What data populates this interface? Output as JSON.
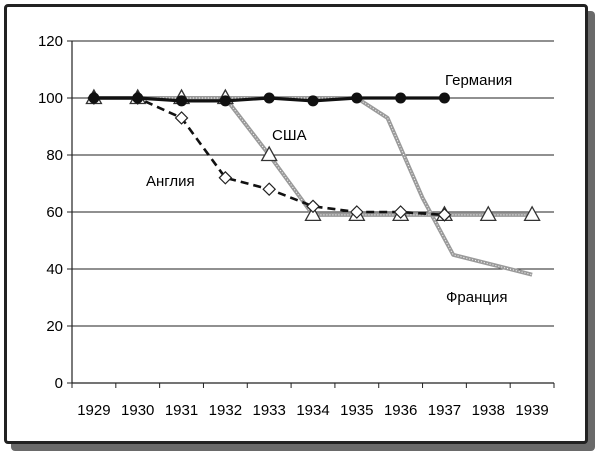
{
  "chart_data": {
    "type": "line",
    "title": "",
    "xlabel": "",
    "ylabel": "",
    "ylim": [
      0,
      120
    ],
    "yticks": [
      "0",
      "20",
      "40",
      "60",
      "80",
      "100",
      "120"
    ],
    "categories": [
      "1929",
      "1930",
      "1931",
      "1932",
      "1933",
      "1934",
      "1935",
      "1936",
      "1937",
      "1938",
      "1939"
    ],
    "grid": "horizontal",
    "series": [
      {
        "name": "Германия",
        "style": "solid-thick",
        "color": "#111111",
        "marker": "circle-filled",
        "points": [
          [
            0,
            100
          ],
          [
            1,
            100
          ],
          [
            2,
            99
          ],
          [
            3,
            99
          ],
          [
            4,
            100
          ],
          [
            5,
            99
          ],
          [
            6,
            100
          ],
          [
            7,
            100
          ],
          [
            8,
            100
          ]
        ]
      },
      {
        "name": "США",
        "style": "gray-hatched",
        "color": "#9a9a9a",
        "marker": "triangle-open",
        "points": [
          [
            0,
            100
          ],
          [
            1,
            100
          ],
          [
            2,
            100
          ],
          [
            3,
            100
          ],
          [
            4,
            80
          ],
          [
            5,
            59
          ],
          [
            6,
            59
          ],
          [
            7,
            59
          ],
          [
            8,
            59
          ],
          [
            9,
            59
          ],
          [
            10,
            59
          ]
        ]
      },
      {
        "name": "Англия",
        "style": "dashed",
        "color": "#111111",
        "marker": "diamond-open",
        "points": [
          [
            0,
            100
          ],
          [
            1,
            100
          ],
          [
            2,
            93
          ],
          [
            3,
            72
          ],
          [
            4,
            68
          ],
          [
            5,
            62
          ],
          [
            6,
            60
          ],
          [
            7,
            60
          ],
          [
            8,
            59
          ]
        ]
      },
      {
        "name": "Франция",
        "style": "gray-hatched",
        "color": "#9a9a9a",
        "marker": "none",
        "points": [
          [
            0,
            100
          ],
          [
            1,
            100
          ],
          [
            2,
            100
          ],
          [
            3,
            100
          ],
          [
            4,
            100
          ],
          [
            5,
            100
          ],
          [
            6,
            100
          ],
          [
            6.7,
            93
          ],
          [
            7.5,
            65
          ],
          [
            8.2,
            45
          ],
          [
            10,
            38
          ]
        ]
      }
    ]
  }
}
